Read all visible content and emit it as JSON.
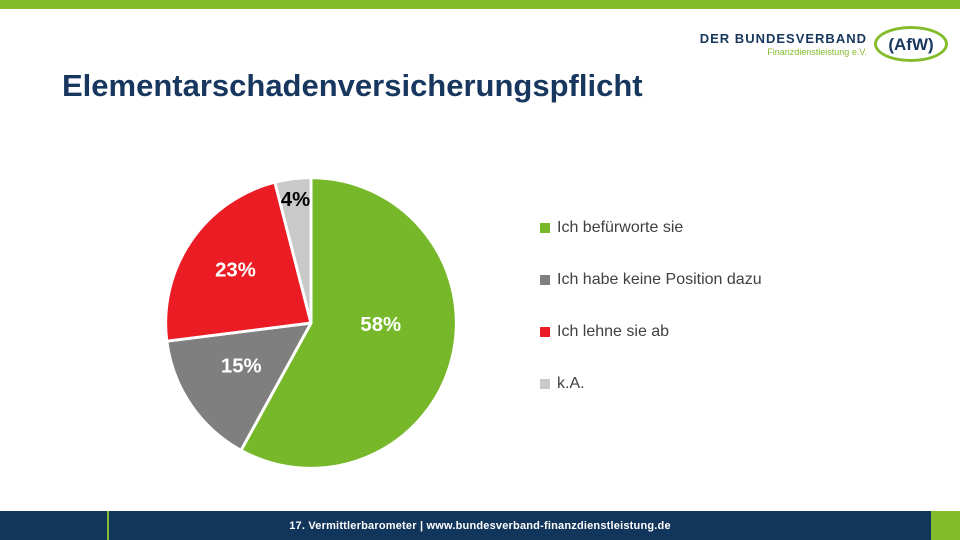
{
  "slide": {
    "title": "Elementarschadenversicherungspflicht",
    "footer_text": "17. Vermittlerbarometer | www.bundesverband-finanzdienstleistung.de"
  },
  "logo": {
    "name_line": "DER BUNDESVERBAND",
    "sub_line": "Finanzdienstleistung e.V.",
    "badge_text": "(AfW)"
  },
  "colors": {
    "accent_green": "#84BC2C",
    "navy": "#17375E",
    "footer_navy": "#12355B",
    "legend_text": "#404040"
  },
  "chart_data": {
    "type": "pie",
    "title": "Elementarschadenversicherungspflicht",
    "direction": "clockwise",
    "start_angle_deg": 0,
    "legend_position": "right",
    "segments": [
      {
        "label": "Ich befürworte sie",
        "value": 58,
        "display": "58%",
        "color": "#76B82A",
        "label_color": "#FFFFFF"
      },
      {
        "label": "Ich habe keine Position dazu",
        "value": 15,
        "display": "15%",
        "color": "#7F7F7F",
        "label_color": "#FFFFFF"
      },
      {
        "label": "Ich lehne sie ab",
        "value": 23,
        "display": "23%",
        "color": "#EB1C24",
        "label_color": "#FFFFFF"
      },
      {
        "label": "k.A.",
        "value": 4,
        "display": "4%",
        "color": "#C9C9C9",
        "label_color": "#000000"
      }
    ]
  }
}
